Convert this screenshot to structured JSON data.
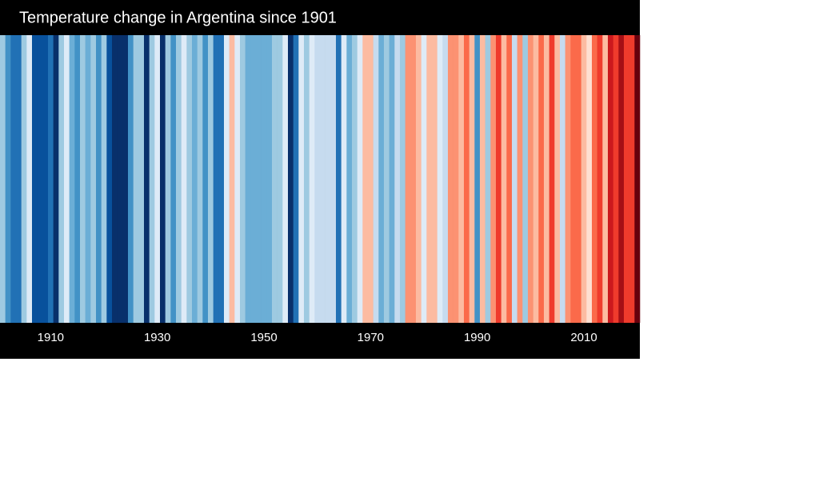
{
  "chart_data": {
    "type": "stripes",
    "title": "Temperature change in Argentina since 1901",
    "x": [
      1901,
      1902,
      1903,
      1904,
      1905,
      1906,
      1907,
      1908,
      1909,
      1910,
      1911,
      1912,
      1913,
      1914,
      1915,
      1916,
      1917,
      1918,
      1919,
      1920,
      1921,
      1922,
      1923,
      1924,
      1925,
      1926,
      1927,
      1928,
      1929,
      1930,
      1931,
      1932,
      1933,
      1934,
      1935,
      1936,
      1937,
      1938,
      1939,
      1940,
      1941,
      1942,
      1943,
      1944,
      1945,
      1946,
      1947,
      1948,
      1949,
      1950,
      1951,
      1952,
      1953,
      1954,
      1955,
      1956,
      1957,
      1958,
      1959,
      1960,
      1961,
      1962,
      1963,
      1964,
      1965,
      1966,
      1967,
      1968,
      1969,
      1970,
      1971,
      1972,
      1973,
      1974,
      1975,
      1976,
      1977,
      1978,
      1979,
      1980,
      1981,
      1982,
      1983,
      1984,
      1985,
      1986,
      1987,
      1988,
      1989,
      1990,
      1991,
      1992,
      1993,
      1994,
      1995,
      1996,
      1997,
      1998,
      1999,
      2000,
      2001,
      2002,
      2003,
      2004,
      2005,
      2006,
      2007,
      2008,
      2009,
      2010,
      2011,
      2012,
      2013,
      2014,
      2015,
      2016,
      2017,
      2018,
      2019,
      2020
    ],
    "values": [
      -0.25,
      -0.45,
      -0.55,
      -0.55,
      -0.25,
      -0.05,
      -0.65,
      -0.65,
      -0.65,
      -0.55,
      -0.75,
      -0.25,
      -0.05,
      -0.35,
      -0.45,
      -0.25,
      -0.35,
      -0.25,
      -0.45,
      -0.25,
      -0.65,
      -0.75,
      -0.75,
      -0.75,
      -0.45,
      -0.25,
      -0.25,
      -0.75,
      -0.25,
      -0.05,
      -0.75,
      -0.25,
      -0.45,
      -0.25,
      -0.05,
      -0.25,
      -0.35,
      -0.25,
      -0.45,
      -0.25,
      -0.55,
      -0.55,
      -0.05,
      0.15,
      -0.05,
      -0.25,
      -0.35,
      -0.35,
      -0.35,
      -0.35,
      -0.35,
      -0.25,
      -0.25,
      -0.05,
      -0.75,
      -0.55,
      -0.05,
      -0.25,
      -0.05,
      -0.15,
      -0.15,
      -0.15,
      -0.15,
      -0.55,
      -0.05,
      -0.35,
      -0.25,
      -0.05,
      0.15,
      0.15,
      -0.15,
      -0.35,
      -0.25,
      -0.35,
      -0.15,
      -0.25,
      0.25,
      0.25,
      0.15,
      -0.05,
      0.15,
      0.15,
      -0.05,
      -0.15,
      0.25,
      0.25,
      0.15,
      0.35,
      0.15,
      -0.45,
      0.15,
      -0.25,
      0.25,
      0.45,
      0.15,
      0.35,
      -0.15,
      0.25,
      -0.25,
      0.25,
      0.15,
      0.35,
      0.15,
      0.45,
      0.15,
      -0.15,
      0.25,
      0.35,
      0.35,
      0.15,
      0.05,
      0.35,
      0.45,
      0.15,
      0.55,
      0.45,
      0.65,
      0.45,
      0.45,
      0.75
    ],
    "vlim": [
      -0.8,
      0.8
    ],
    "colors": [
      "#08306b",
      "#08519c",
      "#2171b5",
      "#4292c6",
      "#6baed6",
      "#9ecae1",
      "#c6dbef",
      "#deebf7",
      "#fee0d2",
      "#fcbba1",
      "#fc9272",
      "#fb6a4a",
      "#ef3b2c",
      "#cb181d",
      "#a50f15",
      "#67000d"
    ],
    "xlim": [
      1900.5,
      2020.5
    ],
    "xticks": [
      1910,
      1930,
      1950,
      1970,
      1990,
      2010
    ]
  }
}
